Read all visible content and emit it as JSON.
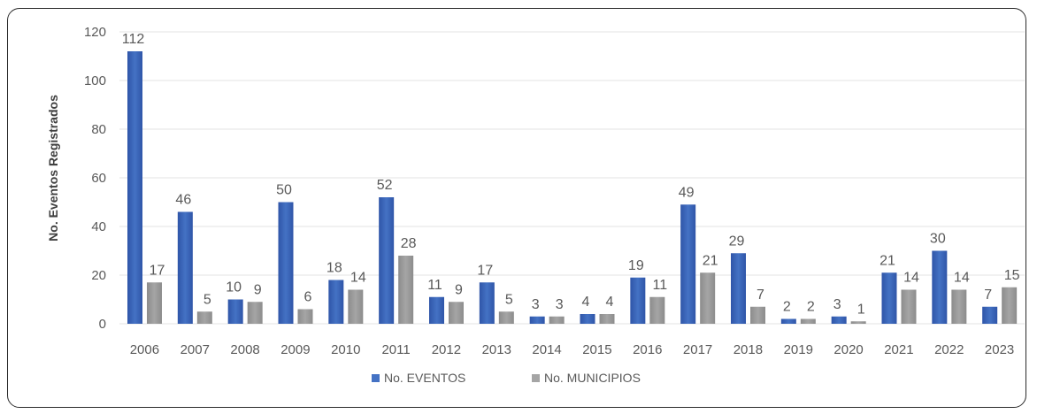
{
  "chart_data": {
    "type": "bar",
    "title": "",
    "xlabel": "",
    "ylabel": "No. Eventos Registrados",
    "ylim": [
      0,
      120
    ],
    "yticks": [
      "0",
      "20",
      "40",
      "60",
      "80",
      "100",
      "120"
    ],
    "grid": true,
    "legend_position": "bottom",
    "categories": [
      "2006",
      "2007",
      "2008",
      "2009",
      "2010",
      "2011",
      "2012",
      "2013",
      "2014",
      "2015",
      "2016",
      "2017",
      "2018",
      "2019",
      "2020",
      "2021",
      "2022",
      "2023"
    ],
    "series": [
      {
        "name": "No. EVENTOS",
        "color": "#4472c4",
        "values": [
          112,
          46,
          10,
          50,
          18,
          52,
          11,
          17,
          3,
          4,
          19,
          49,
          29,
          2,
          3,
          21,
          30,
          7
        ]
      },
      {
        "name": "No. MUNICIPIOS",
        "color": "#a5a5a5",
        "values": [
          17,
          5,
          9,
          6,
          14,
          28,
          9,
          5,
          3,
          4,
          11,
          21,
          7,
          2,
          1,
          14,
          14,
          15
        ]
      }
    ]
  }
}
